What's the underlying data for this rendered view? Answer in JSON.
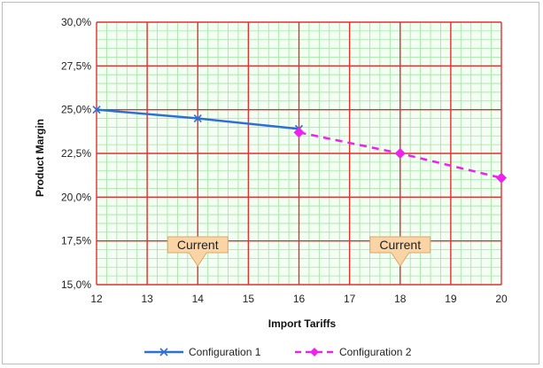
{
  "chart_data": {
    "type": "line",
    "title": "",
    "xlabel": "Import Tariffs",
    "ylabel": "Product Margin",
    "x_ticks": [
      "12",
      "13",
      "14",
      "15",
      "16",
      "17",
      "18",
      "19",
      "20"
    ],
    "y_ticks": [
      "15,0%",
      "17,5%",
      "20,0%",
      "22,5%",
      "25,0%",
      "27,5%",
      "30,0%"
    ],
    "xlim": [
      12,
      20
    ],
    "ylim": [
      15.0,
      30.0
    ],
    "grid": true,
    "legend_position": "bottom",
    "series": [
      {
        "name": "Configuration 1",
        "color": "#2e6fd6",
        "marker": "x",
        "line_style": "solid",
        "x": [
          12,
          14,
          16
        ],
        "y": [
          25.0,
          24.5,
          23.9
        ]
      },
      {
        "name": "Configuration 2",
        "color": "#ee22ee",
        "marker": "diamond",
        "line_style": "dashed",
        "x": [
          16,
          18,
          20
        ],
        "y": [
          23.7,
          22.5,
          21.1
        ]
      }
    ],
    "annotations": [
      {
        "text": "Current",
        "x": 14
      },
      {
        "text": "Current",
        "x": 18
      }
    ]
  }
}
